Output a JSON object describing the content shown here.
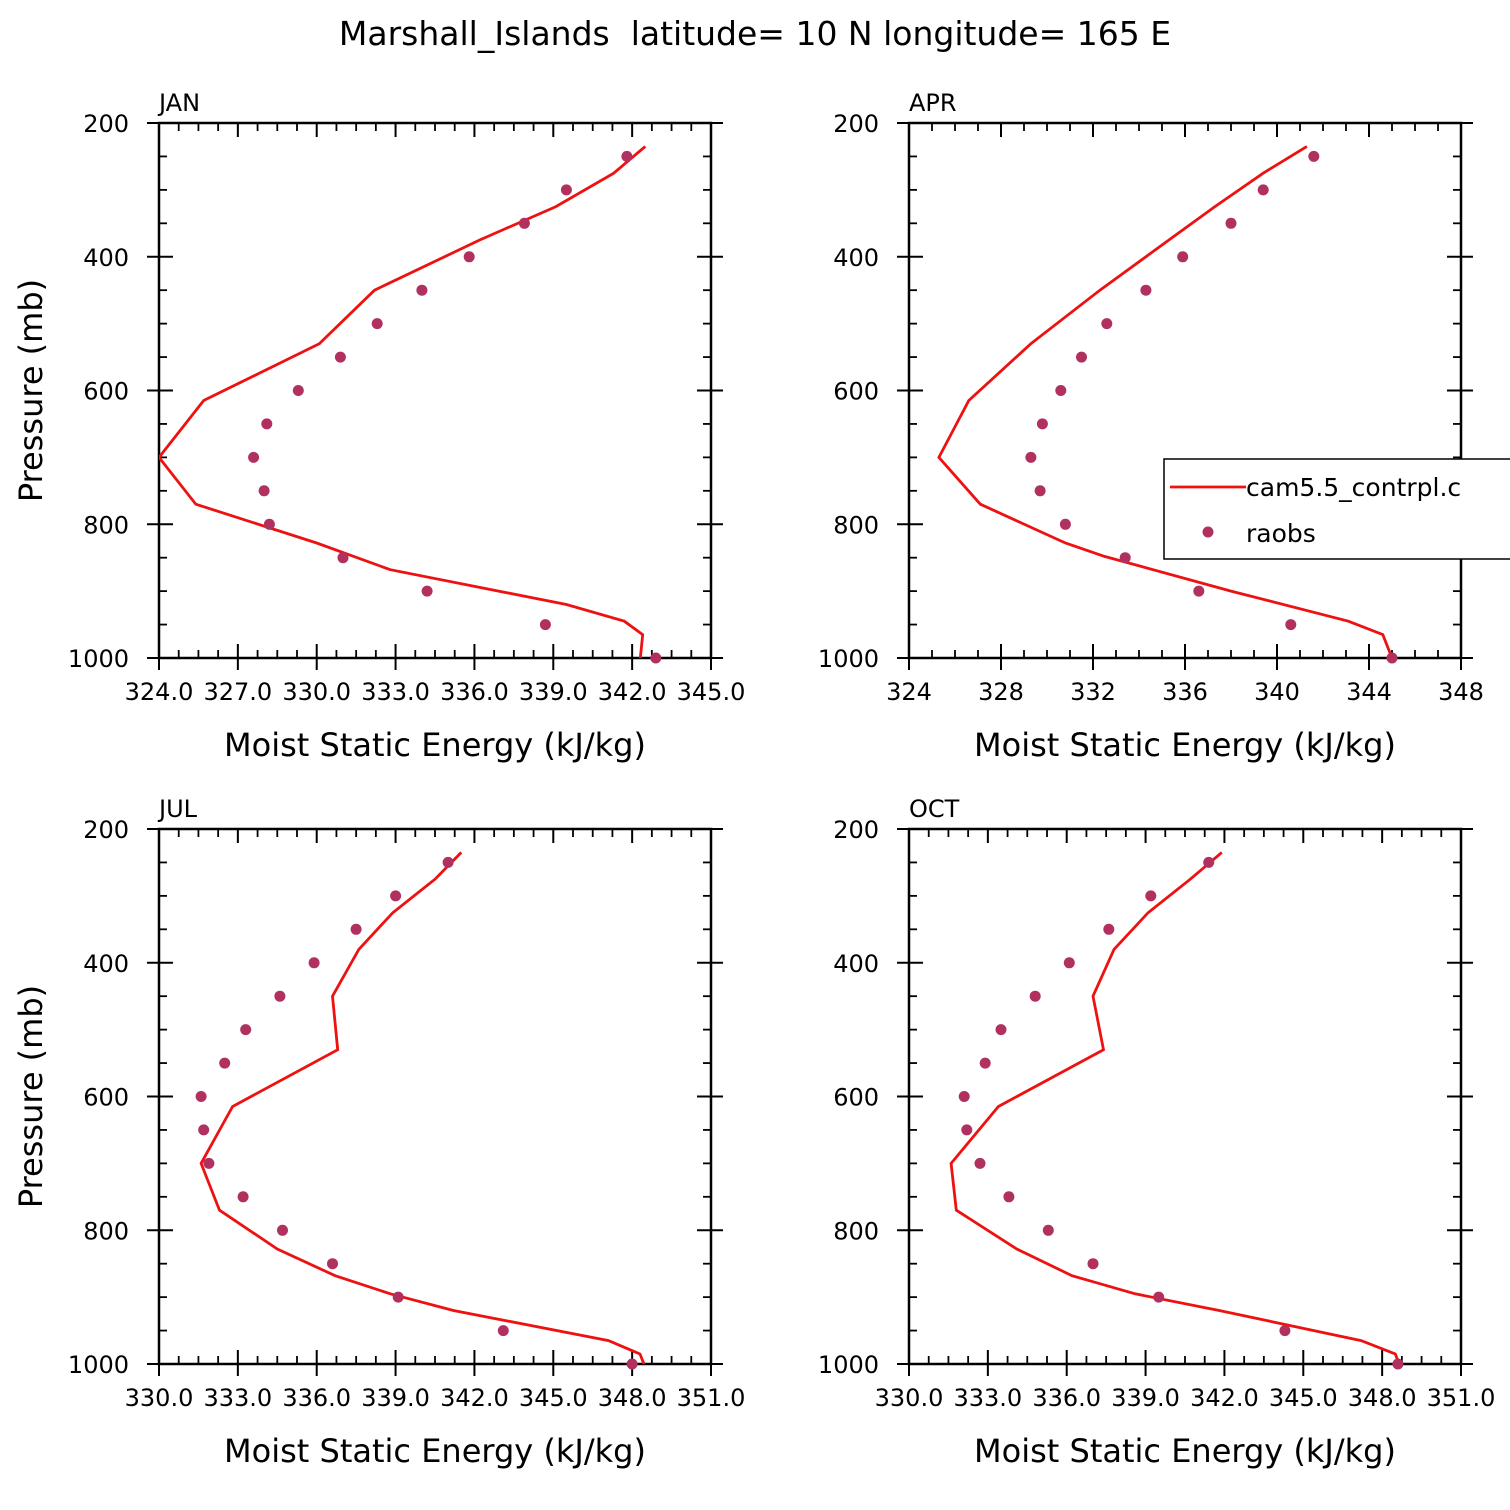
{
  "title": "Marshall_Islands  latitude= 10 N longitude= 165 E",
  "colors": {
    "model": "#ee1111",
    "obs": "#b03060",
    "axis": "#000000"
  },
  "legend": {
    "placement": "right-middle of APR panel",
    "model_label": "cam5.5_contrpl.c",
    "obs_label": "raobs"
  },
  "chart_data": [
    {
      "type": "line",
      "panel_label": "JAN",
      "xlabel": "Moist Static Energy (kJ/kg)",
      "ylabel": "Pressure (mb)",
      "xlim": [
        324.0,
        345.0
      ],
      "ylim": [
        1000,
        200
      ],
      "x_ticks": [
        324,
        327,
        330,
        333,
        336,
        339,
        342,
        345
      ],
      "x_tick_labels": [
        "324.0",
        "327.0",
        "330.0",
        "333.0",
        "336.0",
        "339.0",
        "342.0",
        "345.0"
      ],
      "y_ticks": [
        200,
        400,
        600,
        800,
        1000
      ],
      "y_tick_labels": [
        "200",
        "400",
        "600",
        "800",
        "1000"
      ],
      "series": [
        {
          "name": "cam5.5_contrpl.c",
          "style": "line",
          "x": [
            342.5,
            341.3,
            339.1,
            336.2,
            332.2,
            330.1,
            325.7,
            324.0,
            325.4,
            330.0,
            332.8,
            339.5,
            341.7,
            342.4,
            342.3
          ],
          "y": [
            235,
            275,
            325,
            375,
            450,
            530,
            615,
            700,
            770,
            828,
            868,
            920,
            945,
            965,
            1005
          ]
        },
        {
          "name": "raobs",
          "style": "markers",
          "x": [
            341.8,
            339.5,
            337.9,
            335.8,
            334.0,
            332.3,
            330.9,
            329.3,
            328.1,
            327.6,
            328.0,
            328.2,
            331.0,
            334.2,
            338.7,
            342.9
          ],
          "y": [
            250,
            300,
            350,
            400,
            450,
            500,
            550,
            600,
            650,
            700,
            750,
            800,
            850,
            900,
            950,
            1000
          ]
        }
      ]
    },
    {
      "type": "line",
      "panel_label": "APR",
      "xlabel": "Moist Static Energy (kJ/kg)",
      "ylabel": "",
      "xlim": [
        324,
        348
      ],
      "ylim": [
        1000,
        200
      ],
      "x_ticks": [
        324,
        328,
        332,
        336,
        340,
        344,
        348
      ],
      "x_tick_labels": [
        "324",
        "328",
        "332",
        "336",
        "340",
        "344",
        "348"
      ],
      "y_ticks": [
        200,
        400,
        600,
        800,
        1000
      ],
      "y_tick_labels": [
        "200",
        "400",
        "600",
        "800",
        "1000"
      ],
      "series": [
        {
          "name": "cam5.5_contrpl.c",
          "style": "line",
          "x": [
            341.3,
            339.4,
            337.3,
            335.3,
            332.3,
            329.3,
            326.6,
            325.3,
            327.1,
            330.8,
            332.5,
            338.0,
            343.1,
            344.6,
            345.0
          ],
          "y": [
            235,
            275,
            325,
            375,
            450,
            530,
            615,
            700,
            770,
            828,
            848,
            900,
            945,
            965,
            1000
          ]
        },
        {
          "name": "raobs",
          "style": "markers",
          "x": [
            341.6,
            339.4,
            338.0,
            335.9,
            334.3,
            332.6,
            331.5,
            330.6,
            329.8,
            329.3,
            329.7,
            330.8,
            333.4,
            336.6,
            340.6,
            345.0
          ],
          "y": [
            250,
            300,
            350,
            400,
            450,
            500,
            550,
            600,
            650,
            700,
            750,
            800,
            850,
            900,
            950,
            1000
          ]
        }
      ]
    },
    {
      "type": "line",
      "panel_label": "JUL",
      "xlabel": "Moist Static Energy (kJ/kg)",
      "ylabel": "Pressure (mb)",
      "xlim": [
        330.0,
        351.0
      ],
      "ylim": [
        1000,
        200
      ],
      "x_ticks": [
        330,
        333,
        336,
        339,
        342,
        345,
        348,
        351
      ],
      "x_tick_labels": [
        "330.0",
        "333.0",
        "336.0",
        "339.0",
        "342.0",
        "345.0",
        "348.0",
        "351.0"
      ],
      "y_ticks": [
        200,
        400,
        600,
        800,
        1000
      ],
      "y_tick_labels": [
        "200",
        "400",
        "600",
        "800",
        "1000"
      ],
      "series": [
        {
          "name": "cam5.5_contrpl.c",
          "style": "line",
          "x": [
            341.5,
            340.5,
            338.9,
            337.6,
            336.6,
            336.8,
            332.8,
            331.6,
            332.3,
            334.5,
            336.7,
            338.8,
            341.2,
            347.1,
            348.3,
            348.5
          ],
          "y": [
            235,
            275,
            325,
            380,
            450,
            530,
            615,
            700,
            770,
            828,
            868,
            895,
            920,
            965,
            985,
            1005
          ]
        },
        {
          "name": "raobs",
          "style": "markers",
          "x": [
            341.0,
            339.0,
            337.5,
            335.9,
            334.6,
            333.3,
            332.5,
            331.6,
            331.7,
            331.9,
            333.2,
            334.7,
            336.6,
            339.1,
            343.1,
            348.0
          ],
          "y": [
            250,
            300,
            350,
            400,
            450,
            500,
            550,
            600,
            650,
            700,
            750,
            800,
            850,
            900,
            950,
            1000
          ]
        }
      ]
    },
    {
      "type": "line",
      "panel_label": "OCT",
      "xlabel": "Moist Static Energy (kJ/kg)",
      "ylabel": "",
      "xlim": [
        330.0,
        351.0
      ],
      "ylim": [
        1000,
        200
      ],
      "x_ticks": [
        330,
        333,
        336,
        339,
        342,
        345,
        348,
        351
      ],
      "x_tick_labels": [
        "330.0",
        "333.0",
        "336.0",
        "339.0",
        "342.0",
        "345.0",
        "348.0",
        "351.0"
      ],
      "y_ticks": [
        200,
        400,
        600,
        800,
        1000
      ],
      "y_tick_labels": [
        "200",
        "400",
        "600",
        "800",
        "1000"
      ],
      "series": [
        {
          "name": "cam5.5_contrpl.c",
          "style": "line",
          "x": [
            341.9,
            340.7,
            339.1,
            337.8,
            337.0,
            337.4,
            333.4,
            331.6,
            331.8,
            334.1,
            336.2,
            338.6,
            341.8,
            347.2,
            348.5,
            348.7
          ],
          "y": [
            235,
            275,
            325,
            380,
            450,
            530,
            615,
            700,
            770,
            828,
            868,
            895,
            920,
            965,
            985,
            1005
          ]
        },
        {
          "name": "raobs",
          "style": "markers",
          "x": [
            341.4,
            339.2,
            337.6,
            336.1,
            334.8,
            333.5,
            332.9,
            332.1,
            332.2,
            332.7,
            333.8,
            335.3,
            337.0,
            339.5,
            344.3,
            348.6
          ],
          "y": [
            250,
            300,
            350,
            400,
            450,
            500,
            550,
            600,
            650,
            700,
            750,
            800,
            850,
            900,
            950,
            1000
          ]
        }
      ]
    }
  ]
}
